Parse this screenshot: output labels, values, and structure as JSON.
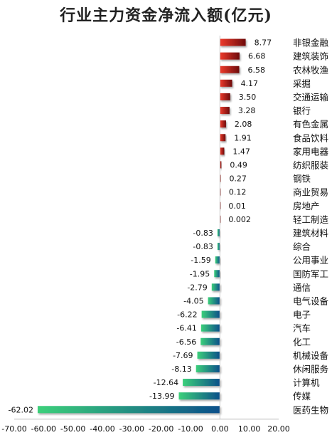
{
  "chart_data": {
    "type": "bar",
    "orientation": "horizontal",
    "title": "行业主力资金净流入额(亿元)",
    "xlim": [
      -70,
      20
    ],
    "xticks": [
      "-70.00",
      "-60.00",
      "-50.00",
      "-40.00",
      "-30.00",
      "-20.00",
      "-10.00",
      "0.00",
      "10.00",
      "20.00"
    ],
    "xtick_values": [
      -70,
      -60,
      -50,
      -40,
      -30,
      -20,
      -10,
      0,
      10,
      20
    ],
    "grid": false,
    "legend": "none",
    "colors": {
      "positive_light": "#ee3b2c",
      "positive_dark": "#6e0b0b",
      "negative_light": "#3cd07a",
      "negative_dark": "#0b4f8a"
    },
    "categories": [
      "非银金融",
      "建筑装饰",
      "农林牧渔",
      "采掘",
      "交通运输",
      "银行",
      "有色金属",
      "食品饮料",
      "家用电器",
      "纺织服装",
      "钢铁",
      "商业贸易",
      "房地产",
      "轻工制造",
      "建筑材料",
      "综合",
      "公用事业",
      "国防军工",
      "通信",
      "电气设备",
      "电子",
      "汽车",
      "化工",
      "机械设备",
      "休闲服务",
      "计算机",
      "传媒",
      "医药生物"
    ],
    "values": [
      8.77,
      6.68,
      6.58,
      4.17,
      3.5,
      3.28,
      2.08,
      1.91,
      1.47,
      0.49,
      0.27,
      0.12,
      0.01,
      0.002,
      -0.83,
      -0.83,
      -1.59,
      -1.95,
      -2.79,
      -4.05,
      -6.22,
      -6.41,
      -6.56,
      -7.69,
      -8.13,
      -12.64,
      -13.99,
      -62.02
    ],
    "value_labels": [
      "8.77",
      "6.68",
      "6.58",
      "4.17",
      "3.50",
      "3.28",
      "2.08",
      "1.91",
      "1.47",
      "0.49",
      "0.27",
      "0.12",
      "0.01",
      "0.002",
      "-0.83",
      "-0.83",
      "-1.59",
      "-1.95",
      "-2.79",
      "-4.05",
      "-6.22",
      "-6.41",
      "-6.56",
      "-7.69",
      "-8.13",
      "-12.64",
      "-13.99",
      "-62.02"
    ]
  }
}
